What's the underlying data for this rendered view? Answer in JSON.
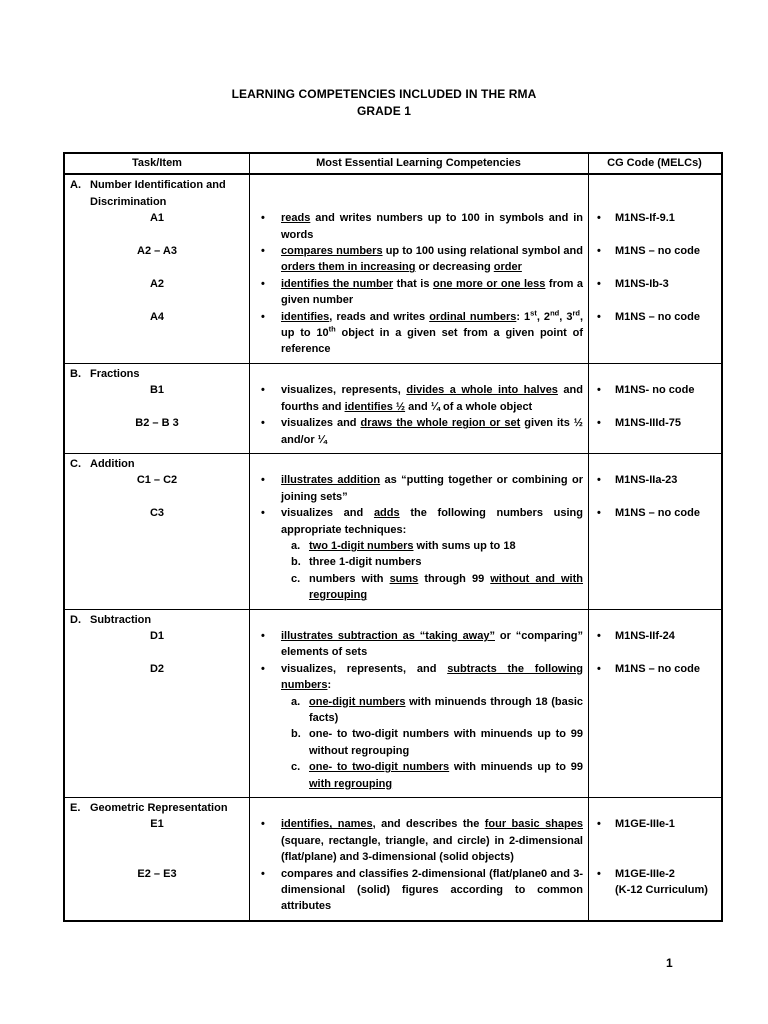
{
  "page": {
    "title_line1": "LEARNING COMPETENCIES INCLUDED IN THE RMA",
    "title_line2": "GRADE 1",
    "page_number": "1",
    "text_color": "#000000",
    "background_color": "#ffffff"
  },
  "table": {
    "icons": {
      "bullet": "•"
    },
    "headers": [
      "Task/Item",
      "Most Essential Learning Competencies",
      "CG Code (MELCs)"
    ],
    "sections": [
      {
        "marker": "A.",
        "title": "Number Identification and Discrimination",
        "rows": [
          {
            "label": "A1",
            "code": "M1NS-If-9.1",
            "segments": [
              {
                "t": "reads",
                "u": 1
              },
              {
                "t": " and writes numbers up to 100 in symbols and in words"
              }
            ]
          },
          {
            "label": "A2 – A3",
            "code": "M1NS – no code",
            "segments": [
              {
                "t": "compares numbers",
                "u": 1
              },
              {
                "t": " up to 100 using relational symbol and "
              },
              {
                "t": "orders them in increasing",
                "u": 1
              },
              {
                "t": " or decreasing "
              },
              {
                "t": "order",
                "u": 1
              }
            ]
          },
          {
            "label": "A2",
            "code": "M1NS-Ib-3",
            "segments": [
              {
                "t": "identifies the number",
                "u": 1
              },
              {
                "t": " that is "
              },
              {
                "t": "one more or one less",
                "u": 1
              },
              {
                "t": " from a given number"
              }
            ]
          },
          {
            "label": "A4",
            "code": "M1NS – no code",
            "segments": [
              {
                "t": "identifies",
                "u": 1
              },
              {
                "t": ", reads and writes "
              },
              {
                "t": "ordinal numbers",
                "u": 1
              },
              {
                "t": ": 1"
              },
              {
                "t": "st",
                "sup": 1
              },
              {
                "t": ", 2"
              },
              {
                "t": "nd",
                "sup": 1
              },
              {
                "t": ", 3"
              },
              {
                "t": "rd",
                "sup": 1
              },
              {
                "t": ", up to 10"
              },
              {
                "t": "th",
                "sup": 1
              },
              {
                "t": " object in a given set from a given point of reference"
              }
            ]
          }
        ]
      },
      {
        "marker": "B.",
        "title": "Fractions",
        "rows": [
          {
            "label": "B1",
            "code": "M1NS- no code",
            "segments": [
              {
                "t": "visualizes, represents, "
              },
              {
                "t": "divides a whole into halves",
                "u": 1
              },
              {
                "t": " and fourths and "
              },
              {
                "t": "identifies ½",
                "u": 1
              },
              {
                "t": " and ¼ of a whole object"
              }
            ]
          },
          {
            "label": "B2 – B 3",
            "code": "M1NS-IIId-75",
            "segments": [
              {
                "t": "visualizes and "
              },
              {
                "t": "draws the whole region or set",
                "u": 1
              },
              {
                "t": " given its ½ and/or ¼"
              }
            ]
          }
        ]
      },
      {
        "marker": "C.",
        "title": "Addition",
        "rows": [
          {
            "label": "C1 – C2",
            "code": "M1NS-IIa-23",
            "segments": [
              {
                "t": "illustrates addition",
                "u": 1
              },
              {
                "t": " as “putting together or combining or joining sets”"
              }
            ]
          },
          {
            "label": "C3",
            "code": "M1NS – no code",
            "segments": [
              {
                "t": "visualizes and "
              },
              {
                "t": "adds",
                "u": 1
              },
              {
                "t": " the following numbers using appropriate techniques:"
              }
            ],
            "subitems": [
              {
                "marker": "a.",
                "segments": [
                  {
                    "t": "two 1-digit numbers",
                    "u": 1
                  },
                  {
                    "t": " with sums up to 18"
                  }
                ]
              },
              {
                "marker": "b.",
                "segments": [
                  {
                    "t": "three 1-digit numbers"
                  }
                ]
              },
              {
                "marker": "c.",
                "segments": [
                  {
                    "t": "numbers with "
                  },
                  {
                    "t": "sums",
                    "u": 1
                  },
                  {
                    "t": " through 99 "
                  },
                  {
                    "t": "without and with regrouping",
                    "u": 1
                  }
                ]
              }
            ]
          }
        ]
      },
      {
        "marker": "D.",
        "title": "Subtraction",
        "rows": [
          {
            "label": "D1",
            "code": "M1NS-IIf-24",
            "segments": [
              {
                "t": "illustrates subtraction as “taking away”",
                "u": 1
              },
              {
                "t": " or “comparing” elements of sets"
              }
            ]
          },
          {
            "label": "D2",
            "code": "M1NS – no code",
            "segments": [
              {
                "t": "visualizes, represents, and "
              },
              {
                "t": "subtracts the following numbers",
                "u": 1
              },
              {
                "t": ":"
              }
            ],
            "subitems": [
              {
                "marker": "a.",
                "segments": [
                  {
                    "t": "one-digit numbers",
                    "u": 1
                  },
                  {
                    "t": " with minuends through 18 (basic facts)"
                  }
                ]
              },
              {
                "marker": "b.",
                "segments": [
                  {
                    "t": "one- to two-digit numbers with minuends up to 99 without regrouping"
                  }
                ]
              },
              {
                "marker": "c.",
                "segments": [
                  {
                    "t": "one- to two-digit numbers",
                    "u": 1
                  },
                  {
                    "t": " with minuends up to 99 "
                  },
                  {
                    "t": "with regrouping",
                    "u": 1
                  }
                ]
              }
            ]
          }
        ]
      },
      {
        "marker": "E.",
        "title": "Geometric Representation",
        "rows": [
          {
            "label": "E1",
            "code": "M1GE-IIIe-1",
            "segments": [
              {
                "t": "identifies, names",
                "u": 1
              },
              {
                "t": ", and describes the "
              },
              {
                "t": "four basic shapes",
                "u": 1
              },
              {
                "t": " (square, rectangle, triangle, and circle) in 2-dimensional (flat/plane) and 3-dimensional (solid objects)"
              }
            ]
          },
          {
            "label": "E2 – E3",
            "code": "M1GE-IIIe-2",
            "code_line2": "(K-12 Curriculum)",
            "segments": [
              {
                "t": "compares and classifies 2-dimensional (flat/plane0 and 3-dimensional (solid) figures according to common attributes"
              }
            ]
          }
        ]
      }
    ]
  }
}
